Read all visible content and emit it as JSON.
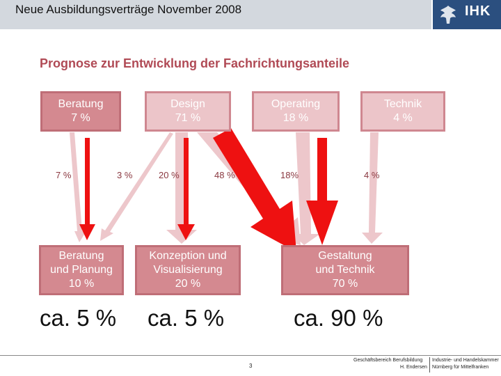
{
  "header": {
    "title": "Neue Ausbildungsverträge November 2008",
    "logo_text": "IHK"
  },
  "subtitle": "Prognose zur Entwicklung der Fachrichtungsanteile",
  "source_boxes": [
    {
      "name": "Beratung",
      "value": "7 %"
    },
    {
      "name": "Design",
      "value": "71 %"
    },
    {
      "name": "Operating",
      "value": "18 %"
    },
    {
      "name": "Technik",
      "value": "4 %"
    }
  ],
  "flow_labels": [
    "7 %",
    "3 %",
    "20 %",
    "48 %",
    "18%",
    "4 %"
  ],
  "target_boxes": [
    {
      "line1": "Beratung",
      "line2": "und Planung",
      "value": "10 %"
    },
    {
      "line1": "Konzeption und",
      "line2": "Visualisierung",
      "value": "20 %"
    },
    {
      "line1": "Gestaltung",
      "line2": "und Technik",
      "value": "70 %"
    }
  ],
  "forecasts": [
    "ca. 5 %",
    "ca. 5 %",
    "ca. 90 %"
  ],
  "footer": {
    "page_number": "3",
    "dept_line1": "Geschäftsbereich Berufsbildung",
    "dept_line2": "H. Endersen",
    "org_line1": "Industrie- und Handelskammer",
    "org_line2": "Nürnberg für Mittelfranken"
  },
  "colors": {
    "header_bg": "#d3d8de",
    "logo_bg": "#2b4f7f",
    "subtitle": "#b04a55",
    "box_light": "#ecc5c9",
    "box_dark": "#d48990",
    "arrow_red": "#ee1111"
  },
  "icons": [
    "ihk-eagle-icon"
  ]
}
